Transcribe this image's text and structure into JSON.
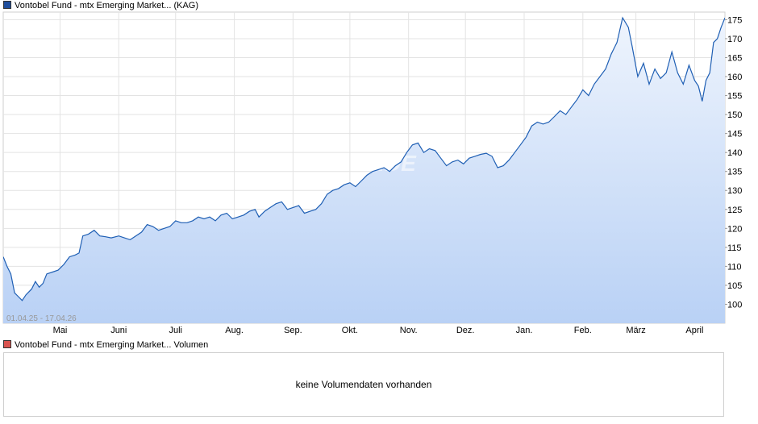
{
  "legend": {
    "price_label": "Vontobel Fund - mtx Emerging Market...  (KAG)",
    "price_color": "#1f4e9c",
    "volume_label": "Vontobel Fund - mtx Emerging Market... Volumen",
    "volume_color": "#d9534f"
  },
  "volume": {
    "message": "keine Volumendaten vorhanden"
  },
  "watermark": "ARIVA.DE",
  "chart_data": {
    "type": "area",
    "date_range": "01.04.25 - 17.04.26",
    "y_ticks": [
      100,
      105,
      110,
      115,
      120,
      125,
      130,
      135,
      140,
      145,
      150,
      155,
      160,
      165,
      170,
      175
    ],
    "ylim": [
      95,
      177
    ],
    "y_axis_position": "right",
    "grid": true,
    "x_range": [
      "2025-04-01",
      "2026-04-17"
    ],
    "x_ticks": [
      {
        "label": "Mai",
        "date": "2025-05-01"
      },
      {
        "label": "Juni",
        "date": "2025-06-01"
      },
      {
        "label": "Juli",
        "date": "2025-07-01"
      },
      {
        "label": "Aug.",
        "date": "2025-08-01"
      },
      {
        "label": "Sep.",
        "date": "2025-09-01"
      },
      {
        "label": "Okt.",
        "date": "2025-10-01"
      },
      {
        "label": "Nov.",
        "date": "2025-11-01"
      },
      {
        "label": "Dez.",
        "date": "2025-12-01"
      },
      {
        "label": "Jan.",
        "date": "2026-01-01"
      },
      {
        "label": "Feb.",
        "date": "2026-02-01"
      },
      {
        "label": "März",
        "date": "2026-03-01"
      },
      {
        "label": "April",
        "date": "2026-04-01"
      }
    ],
    "series": [
      {
        "line_color": "#1f5fb4",
        "fill_top": "#eef4fd",
        "fill_bottom": "#b9d1f5",
        "points": [
          [
            "2025-04-01",
            112.5
          ],
          [
            "2025-04-03",
            110.0
          ],
          [
            "2025-04-05",
            108.0
          ],
          [
            "2025-04-07",
            103.0
          ],
          [
            "2025-04-09",
            102.0
          ],
          [
            "2025-04-11",
            101.0
          ],
          [
            "2025-04-13",
            102.5
          ],
          [
            "2025-04-16",
            104.0
          ],
          [
            "2025-04-18",
            106.0
          ],
          [
            "2025-04-20",
            104.5
          ],
          [
            "2025-04-22",
            105.5
          ],
          [
            "2025-04-24",
            108.0
          ],
          [
            "2025-04-27",
            108.5
          ],
          [
            "2025-04-30",
            109.0
          ],
          [
            "2025-05-03",
            110.5
          ],
          [
            "2025-05-06",
            112.5
          ],
          [
            "2025-05-09",
            113.0
          ],
          [
            "2025-05-11",
            113.5
          ],
          [
            "2025-05-13",
            118.0
          ],
          [
            "2025-05-16",
            118.5
          ],
          [
            "2025-05-19",
            119.5
          ],
          [
            "2025-05-22",
            118.0
          ],
          [
            "2025-05-25",
            117.8
          ],
          [
            "2025-05-28",
            117.5
          ],
          [
            "2025-06-01",
            118.0
          ],
          [
            "2025-06-04",
            117.5
          ],
          [
            "2025-06-07",
            117.0
          ],
          [
            "2025-06-10",
            118.0
          ],
          [
            "2025-06-13",
            119.0
          ],
          [
            "2025-06-16",
            121.0
          ],
          [
            "2025-06-19",
            120.5
          ],
          [
            "2025-06-22",
            119.5
          ],
          [
            "2025-06-25",
            120.0
          ],
          [
            "2025-06-28",
            120.5
          ],
          [
            "2025-07-01",
            122.0
          ],
          [
            "2025-07-04",
            121.5
          ],
          [
            "2025-07-07",
            121.5
          ],
          [
            "2025-07-10",
            122.0
          ],
          [
            "2025-07-13",
            123.0
          ],
          [
            "2025-07-16",
            122.5
          ],
          [
            "2025-07-19",
            123.0
          ],
          [
            "2025-07-22",
            122.0
          ],
          [
            "2025-07-25",
            123.5
          ],
          [
            "2025-07-28",
            124.0
          ],
          [
            "2025-07-31",
            122.5
          ],
          [
            "2025-08-03",
            123.0
          ],
          [
            "2025-08-06",
            123.5
          ],
          [
            "2025-08-09",
            124.5
          ],
          [
            "2025-08-12",
            125.0
          ],
          [
            "2025-08-14",
            123.0
          ],
          [
            "2025-08-17",
            124.5
          ],
          [
            "2025-08-20",
            125.5
          ],
          [
            "2025-08-23",
            126.5
          ],
          [
            "2025-08-26",
            127.0
          ],
          [
            "2025-08-29",
            125.0
          ],
          [
            "2025-09-01",
            125.5
          ],
          [
            "2025-09-04",
            126.0
          ],
          [
            "2025-09-07",
            124.0
          ],
          [
            "2025-09-10",
            124.5
          ],
          [
            "2025-09-13",
            125.0
          ],
          [
            "2025-09-16",
            126.5
          ],
          [
            "2025-09-19",
            129.0
          ],
          [
            "2025-09-22",
            130.0
          ],
          [
            "2025-09-25",
            130.5
          ],
          [
            "2025-09-28",
            131.5
          ],
          [
            "2025-10-01",
            132.0
          ],
          [
            "2025-10-04",
            131.0
          ],
          [
            "2025-10-07",
            132.5
          ],
          [
            "2025-10-10",
            134.0
          ],
          [
            "2025-10-13",
            135.0
          ],
          [
            "2025-10-16",
            135.5
          ],
          [
            "2025-10-19",
            136.0
          ],
          [
            "2025-10-22",
            135.0
          ],
          [
            "2025-10-25",
            136.5
          ],
          [
            "2025-10-28",
            137.5
          ],
          [
            "2025-10-31",
            140.0
          ],
          [
            "2025-11-03",
            142.0
          ],
          [
            "2025-11-06",
            142.5
          ],
          [
            "2025-11-09",
            140.0
          ],
          [
            "2025-11-12",
            141.0
          ],
          [
            "2025-11-15",
            140.5
          ],
          [
            "2025-11-18",
            138.5
          ],
          [
            "2025-11-21",
            136.5
          ],
          [
            "2025-11-24",
            137.5
          ],
          [
            "2025-11-27",
            138.0
          ],
          [
            "2025-11-30",
            137.0
          ],
          [
            "2025-12-03",
            138.5
          ],
          [
            "2025-12-06",
            139.0
          ],
          [
            "2025-12-09",
            139.5
          ],
          [
            "2025-12-12",
            139.8
          ],
          [
            "2025-12-15",
            139.0
          ],
          [
            "2025-12-18",
            136.0
          ],
          [
            "2025-12-21",
            136.5
          ],
          [
            "2025-12-24",
            138.0
          ],
          [
            "2025-12-27",
            140.0
          ],
          [
            "2025-12-30",
            142.0
          ],
          [
            "2026-01-02",
            144.0
          ],
          [
            "2026-01-05",
            147.0
          ],
          [
            "2026-01-08",
            148.0
          ],
          [
            "2026-01-11",
            147.5
          ],
          [
            "2026-01-14",
            148.0
          ],
          [
            "2026-01-17",
            149.5
          ],
          [
            "2026-01-20",
            151.0
          ],
          [
            "2026-01-23",
            150.0
          ],
          [
            "2026-01-26",
            152.0
          ],
          [
            "2026-01-29",
            154.0
          ],
          [
            "2026-02-01",
            156.5
          ],
          [
            "2026-02-04",
            155.0
          ],
          [
            "2026-02-07",
            158.0
          ],
          [
            "2026-02-10",
            160.0
          ],
          [
            "2026-02-13",
            162.0
          ],
          [
            "2026-02-16",
            166.0
          ],
          [
            "2026-02-19",
            169.0
          ],
          [
            "2026-02-22",
            175.5
          ],
          [
            "2026-02-25",
            173.0
          ],
          [
            "2026-02-27",
            168.0
          ],
          [
            "2026-03-02",
            160.0
          ],
          [
            "2026-03-05",
            163.5
          ],
          [
            "2026-03-08",
            158.0
          ],
          [
            "2026-03-11",
            162.0
          ],
          [
            "2026-03-14",
            159.5
          ],
          [
            "2026-03-17",
            161.0
          ],
          [
            "2026-03-20",
            166.5
          ],
          [
            "2026-03-23",
            161.0
          ],
          [
            "2026-03-26",
            158.0
          ],
          [
            "2026-03-29",
            163.0
          ],
          [
            "2026-04-01",
            159.0
          ],
          [
            "2026-04-03",
            157.5
          ],
          [
            "2026-04-05",
            153.5
          ],
          [
            "2026-04-07",
            159.0
          ],
          [
            "2026-04-09",
            161.0
          ],
          [
            "2026-04-11",
            169.0
          ],
          [
            "2026-04-13",
            170.0
          ],
          [
            "2026-04-15",
            173.0
          ],
          [
            "2026-04-17",
            175.5
          ]
        ]
      }
    ]
  }
}
